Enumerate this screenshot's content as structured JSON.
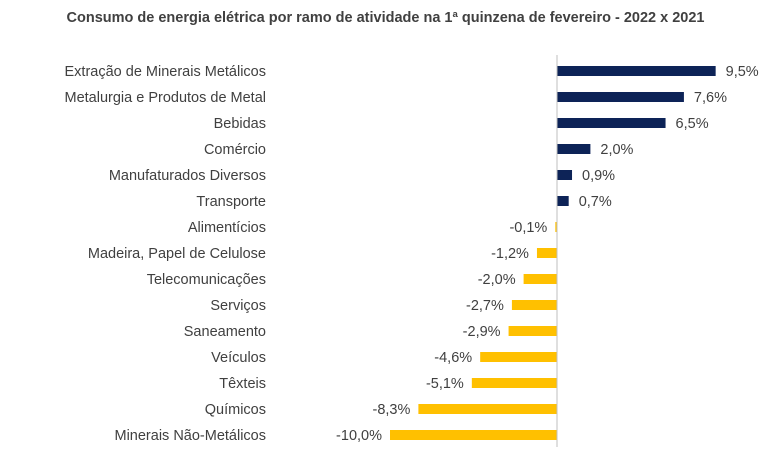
{
  "chart_data": {
    "type": "bar",
    "orientation": "horizontal",
    "title": "Consumo de energia elétrica por ramo de atividade na 1ª quinzena de fevereiro - 2022 x 2021",
    "categories": [
      "Extração de Minerais Metálicos",
      "Metalurgia e Produtos de Metal",
      "Bebidas",
      "Comércio",
      "Manufaturados Diversos",
      "Transporte",
      "Alimentícios",
      "Madeira, Papel de Celulose",
      "Telecomunicações",
      "Serviços",
      "Saneamento",
      "Veículos",
      "Têxteis",
      "Químicos",
      "Minerais Não-Metálicos"
    ],
    "values": [
      9.5,
      7.6,
      6.5,
      2.0,
      0.9,
      0.7,
      -0.1,
      -1.2,
      -2.0,
      -2.7,
      -2.9,
      -4.6,
      -5.1,
      -8.3,
      -10.0
    ],
    "value_labels": [
      "9,5%",
      "7,6%",
      "6,5%",
      "2,0%",
      "0,9%",
      "0,7%",
      "-0,1%",
      "-1,2%",
      "-2,0%",
      "-2,7%",
      "-2,9%",
      "-4,6%",
      "-5,1%",
      "-8,3%",
      "-10,0%"
    ],
    "xlabel": "",
    "ylabel": "",
    "grid": false,
    "legend": "none",
    "colors": {
      "positive": "#0d2357",
      "negative": "#ffc000",
      "axis": "#bfbfbf",
      "text": "#404040"
    }
  }
}
